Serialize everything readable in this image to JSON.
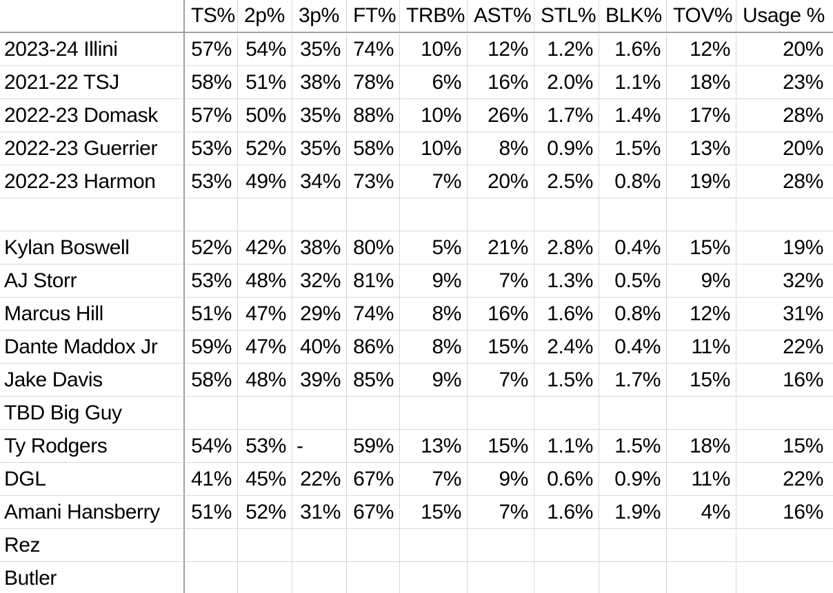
{
  "colors": {
    "background": "#ffffff",
    "gridline": "#d8d8d8",
    "divider": "#a0a0a0",
    "text": "#000000"
  },
  "table": {
    "header": [
      "",
      "TS%",
      "2p%",
      "3p%",
      "FT%",
      "TRB%",
      "AST%",
      "STL%",
      "BLK%",
      "TOV%",
      "Usage %"
    ],
    "rows": [
      {
        "name": "2023-24 Illini",
        "values": [
          "57%",
          "54%",
          "35%",
          "74%",
          "10%",
          "12%",
          "1.2%",
          "1.6%",
          "12%",
          "20%"
        ]
      },
      {
        "name": "2021-22 TSJ",
        "values": [
          "58%",
          "51%",
          "38%",
          "78%",
          "6%",
          "16%",
          "2.0%",
          "1.1%",
          "18%",
          "23%"
        ]
      },
      {
        "name": "2022-23 Domask",
        "values": [
          "57%",
          "50%",
          "35%",
          "88%",
          "10%",
          "26%",
          "1.7%",
          "1.4%",
          "17%",
          "28%"
        ]
      },
      {
        "name": "2022-23 Guerrier",
        "values": [
          "53%",
          "52%",
          "35%",
          "58%",
          "10%",
          "8%",
          "0.9%",
          "1.5%",
          "13%",
          "20%"
        ]
      },
      {
        "name": "2022-23 Harmon",
        "values": [
          "53%",
          "49%",
          "34%",
          "73%",
          "7%",
          "20%",
          "2.5%",
          "0.8%",
          "19%",
          "28%"
        ]
      },
      {
        "name": "",
        "values": [
          "",
          "",
          "",
          "",
          "",
          "",
          "",
          "",
          "",
          ""
        ]
      },
      {
        "name": "Kylan Boswell",
        "values": [
          "52%",
          "42%",
          "38%",
          "80%",
          "5%",
          "21%",
          "2.8%",
          "0.4%",
          "15%",
          "19%"
        ]
      },
      {
        "name": "AJ Storr",
        "values": [
          "53%",
          "48%",
          "32%",
          "81%",
          "9%",
          "7%",
          "1.3%",
          "0.5%",
          "9%",
          "32%"
        ]
      },
      {
        "name": "Marcus Hill",
        "values": [
          "51%",
          "47%",
          "29%",
          "74%",
          "8%",
          "16%",
          "1.6%",
          "0.8%",
          "12%",
          "31%"
        ]
      },
      {
        "name": "Dante Maddox Jr",
        "values": [
          "59%",
          "47%",
          "40%",
          "86%",
          "8%",
          "15%",
          "2.4%",
          "0.4%",
          "11%",
          "22%"
        ]
      },
      {
        "name": "Jake Davis",
        "values": [
          "58%",
          "48%",
          "39%",
          "85%",
          "9%",
          "7%",
          "1.5%",
          "1.7%",
          "15%",
          "16%"
        ]
      },
      {
        "name": "TBD Big Guy",
        "values": [
          "",
          "",
          "",
          "",
          "",
          "",
          "",
          "",
          "",
          ""
        ]
      },
      {
        "name": "Ty Rodgers",
        "values": [
          "54%",
          "53%",
          "-",
          "59%",
          "13%",
          "15%",
          "1.1%",
          "1.5%",
          "18%",
          "15%"
        ]
      },
      {
        "name": "DGL",
        "values": [
          "41%",
          "45%",
          "22%",
          "67%",
          "7%",
          "9%",
          "0.6%",
          "0.9%",
          "11%",
          "22%"
        ]
      },
      {
        "name": "Amani Hansberry",
        "values": [
          "51%",
          "52%",
          "31%",
          "67%",
          "15%",
          "7%",
          "1.6%",
          "1.9%",
          "4%",
          "16%"
        ]
      },
      {
        "name": "Rez",
        "values": [
          "",
          "",
          "",
          "",
          "",
          "",
          "",
          "",
          "",
          ""
        ]
      },
      {
        "name": "Butler",
        "values": [
          "",
          "",
          "",
          "",
          "",
          "",
          "",
          "",
          "",
          ""
        ]
      }
    ]
  }
}
